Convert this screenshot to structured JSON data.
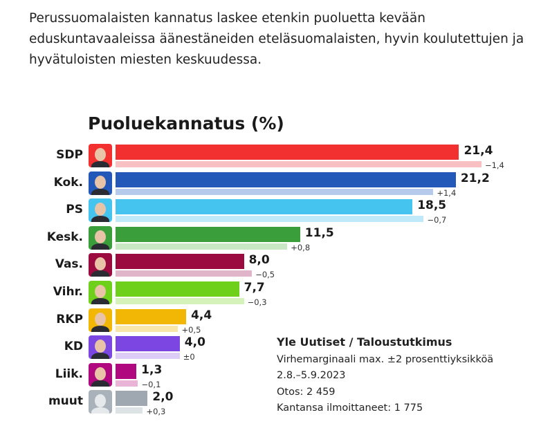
{
  "intro": "Perussuomalaisten kannatus laskee etenkin puoluetta kevään eduskuntavaaleissa äänestäneiden eteläsuomalaisten, hyvin koulutettujen ja hyvätuloisten miesten keskuudessa.",
  "chart_data": {
    "type": "bar",
    "title": "Puoluekannatus (%)",
    "categories": [
      "SDP",
      "Kok.",
      "PS",
      "Kesk.",
      "Vas.",
      "Vihr.",
      "RKP",
      "KD",
      "Liik.",
      "muut"
    ],
    "values": [
      21.4,
      21.2,
      18.5,
      11.5,
      8.0,
      7.7,
      4.4,
      4.0,
      1.3,
      2.0
    ],
    "value_labels": [
      "21,4",
      "21,2",
      "18,5",
      "11,5",
      "8,0",
      "7,7",
      "4,4",
      "4,0",
      "1,3",
      "2,0"
    ],
    "changes": [
      -1.4,
      1.4,
      -0.7,
      0.8,
      -0.5,
      -0.3,
      0.5,
      0,
      -0.1,
      0.3
    ],
    "change_labels": [
      "−1,4",
      "+1,4",
      "−0,7",
      "+0,8",
      "−0,5",
      "−0,3",
      "+0,5",
      "±0",
      "−0,1",
      "+0,3"
    ],
    "colors": [
      "#f23030",
      "#2358b8",
      "#45c4ef",
      "#3a9e3a",
      "#9b0b3f",
      "#6fd01c",
      "#f2b705",
      "#7b46e2",
      "#b0087e",
      "#9fa8b0"
    ],
    "light_colors": [
      "#f8c0c3",
      "#b6cbeb",
      "#bfe9f9",
      "#c7e8c2",
      "#e0b5c9",
      "#d6f2bb",
      "#f8e6a8",
      "#dccdf7",
      "#e9b4d6",
      "#dde2e5"
    ]
  },
  "source": {
    "heading": "Yle Uutiset / Taloustutkimus",
    "lines": [
      "Virhemarginaali max. ±2 prosenttiyksikköä",
      "2.8.–5.9.2023",
      "Otos: 2 459",
      "Kantansa ilmoittaneet: 1 775"
    ]
  }
}
